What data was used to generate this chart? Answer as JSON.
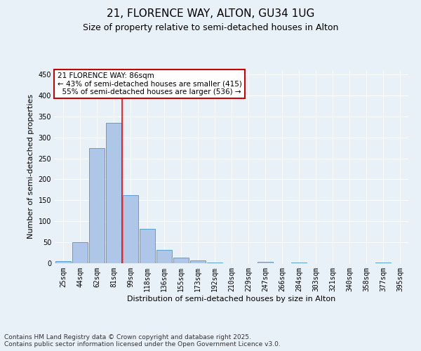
{
  "title": "21, FLORENCE WAY, ALTON, GU34 1UG",
  "subtitle": "Size of property relative to semi-detached houses in Alton",
  "xlabel": "Distribution of semi-detached houses by size in Alton",
  "ylabel": "Number of semi-detached properties",
  "categories": [
    "25sqm",
    "44sqm",
    "62sqm",
    "81sqm",
    "99sqm",
    "118sqm",
    "136sqm",
    "155sqm",
    "173sqm",
    "192sqm",
    "210sqm",
    "229sqm",
    "247sqm",
    "266sqm",
    "284sqm",
    "303sqm",
    "321sqm",
    "340sqm",
    "358sqm",
    "377sqm",
    "395sqm"
  ],
  "values": [
    5,
    50,
    275,
    335,
    163,
    82,
    32,
    13,
    6,
    2,
    0,
    0,
    3,
    0,
    2,
    0,
    0,
    0,
    0,
    2,
    0
  ],
  "bar_color": "#aec6e8",
  "bar_edge_color": "#5a9fd4",
  "red_line_x": 3.5,
  "annotation_text": "21 FLORENCE WAY: 86sqm\n← 43% of semi-detached houses are smaller (415)\n  55% of semi-detached houses are larger (536) →",
  "annotation_box_color": "#ffffff",
  "annotation_box_edge_color": "#cc0000",
  "ylim": [
    0,
    460
  ],
  "yticks": [
    0,
    50,
    100,
    150,
    200,
    250,
    300,
    350,
    400,
    450
  ],
  "bg_color": "#e8f0f8",
  "plot_bg_color": "#e8f0f8",
  "footer": "Contains HM Land Registry data © Crown copyright and database right 2025.\nContains public sector information licensed under the Open Government Licence v3.0.",
  "title_fontsize": 11,
  "subtitle_fontsize": 9,
  "axis_label_fontsize": 8,
  "tick_fontsize": 7,
  "footer_fontsize": 6.5,
  "annotation_fontsize": 7.5
}
